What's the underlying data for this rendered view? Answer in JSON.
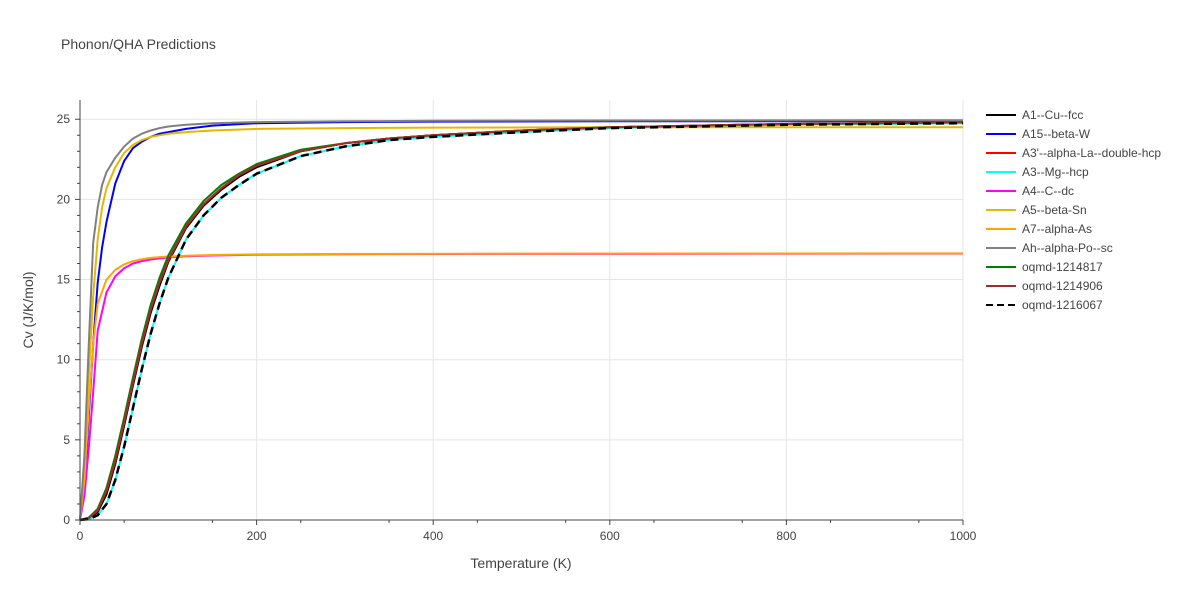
{
  "chart_data": {
    "type": "line",
    "title": "Phonon/QHA Predictions",
    "xlabel": "Temperature (K)",
    "ylabel": "Cv (J/K/mol)",
    "xlim": [
      0,
      1000
    ],
    "ylim": [
      0,
      26.2
    ],
    "xticks": [
      0,
      200,
      400,
      600,
      800,
      1000
    ],
    "yticks": [
      0,
      5,
      10,
      15,
      20,
      25
    ],
    "grid": true,
    "legend_position": "right",
    "series": [
      {
        "name": "A1--Cu--fcc",
        "color": "#000000",
        "dash": false,
        "x": [
          0,
          10,
          20,
          30,
          40,
          50,
          60,
          70,
          80,
          90,
          100,
          120,
          140,
          160,
          180,
          200,
          250,
          300,
          350,
          400,
          500,
          600,
          700,
          800,
          900,
          1000
        ],
        "y": [
          0,
          0.1,
          0.5,
          1.6,
          3.5,
          5.9,
          8.4,
          10.8,
          12.9,
          14.6,
          16.1,
          18.2,
          19.6,
          20.6,
          21.4,
          22.0,
          23.0,
          23.5,
          23.8,
          24.0,
          24.3,
          24.5,
          24.6,
          24.7,
          24.75,
          24.8
        ]
      },
      {
        "name": "A15--beta-W",
        "color": "#0000ff",
        "dash": false,
        "x": [
          0,
          5,
          10,
          15,
          20,
          25,
          30,
          40,
          50,
          60,
          70,
          80,
          90,
          100,
          120,
          150,
          200,
          300,
          400,
          600,
          800,
          1000
        ],
        "y": [
          0,
          2.0,
          6.5,
          11.0,
          14.8,
          17.0,
          18.6,
          21.0,
          22.4,
          23.2,
          23.6,
          23.9,
          24.1,
          24.2,
          24.4,
          24.6,
          24.75,
          24.82,
          24.85,
          24.87,
          24.88,
          24.89
        ]
      },
      {
        "name": "A3'--alpha-La--double-hcp",
        "color": "#ff0000",
        "dash": false,
        "x": [
          0,
          10,
          20,
          30,
          40,
          50,
          60,
          70,
          80,
          90,
          100,
          120,
          140,
          160,
          180,
          200,
          250,
          300,
          350,
          400,
          500,
          600,
          700,
          800,
          900,
          1000
        ],
        "y": [
          0,
          0.1,
          0.6,
          1.8,
          3.7,
          6.1,
          8.6,
          11.0,
          13.1,
          14.8,
          16.2,
          18.3,
          19.7,
          20.7,
          21.5,
          22.1,
          23.0,
          23.5,
          23.8,
          24.0,
          24.3,
          24.5,
          24.6,
          24.7,
          24.75,
          24.8
        ]
      },
      {
        "name": "A3--Mg--hcp",
        "color": "#00ffff",
        "dash": false,
        "x": [
          0,
          10,
          20,
          30,
          40,
          50,
          60,
          70,
          80,
          90,
          100,
          120,
          140,
          160,
          180,
          200,
          250,
          300,
          350,
          400,
          500,
          600,
          700,
          800,
          900,
          1000
        ],
        "y": [
          0,
          0.05,
          0.3,
          1.0,
          2.5,
          4.6,
          7.0,
          9.4,
          11.6,
          13.5,
          15.1,
          17.5,
          19.0,
          20.1,
          20.9,
          21.6,
          22.7,
          23.3,
          23.7,
          23.9,
          24.2,
          24.45,
          24.55,
          24.65,
          24.7,
          24.75
        ]
      },
      {
        "name": "A4--C--dc",
        "color": "#ff00ff",
        "dash": false,
        "x": [
          0,
          5,
          10,
          15,
          20,
          30,
          40,
          50,
          60,
          70,
          80,
          90,
          100,
          120,
          150,
          200,
          300,
          500,
          1000
        ],
        "y": [
          0,
          1.5,
          4.5,
          8.0,
          11.8,
          14.2,
          15.2,
          15.7,
          16.0,
          16.15,
          16.25,
          16.32,
          16.38,
          16.45,
          16.5,
          16.55,
          16.58,
          16.6,
          16.62
        ]
      },
      {
        "name": "A5--beta-Sn",
        "color": "#e6b800",
        "dash": false,
        "x": [
          0,
          5,
          10,
          15,
          20,
          25,
          30,
          40,
          50,
          60,
          70,
          80,
          90,
          100,
          120,
          150,
          200,
          300,
          400,
          600,
          800,
          1000
        ],
        "y": [
          0,
          3.5,
          9.0,
          14.0,
          17.5,
          19.5,
          20.7,
          22.0,
          22.9,
          23.4,
          23.7,
          23.9,
          24.0,
          24.1,
          24.2,
          24.3,
          24.4,
          24.45,
          24.48,
          24.5,
          24.5,
          24.5
        ]
      },
      {
        "name": "A7--alpha-As",
        "color": "#ffa500",
        "dash": false,
        "x": [
          0,
          5,
          10,
          15,
          20,
          30,
          40,
          50,
          60,
          70,
          80,
          90,
          100,
          120,
          150,
          200,
          300,
          500,
          1000
        ],
        "y": [
          0,
          2.5,
          7.0,
          11.0,
          13.5,
          15.0,
          15.6,
          15.95,
          16.15,
          16.27,
          16.35,
          16.4,
          16.44,
          16.49,
          16.53,
          16.57,
          16.6,
          16.62,
          16.63
        ]
      },
      {
        "name": "Ah--alpha-Po--sc",
        "color": "#808080",
        "dash": false,
        "x": [
          0,
          5,
          10,
          15,
          20,
          25,
          30,
          40,
          50,
          60,
          70,
          80,
          90,
          100,
          120,
          150,
          200,
          300,
          400,
          600,
          800,
          1000
        ],
        "y": [
          0,
          4.0,
          11.0,
          17.3,
          19.5,
          20.9,
          21.7,
          22.6,
          23.3,
          23.8,
          24.1,
          24.3,
          24.45,
          24.55,
          24.65,
          24.75,
          24.82,
          24.87,
          24.9,
          24.92,
          24.93,
          24.94
        ]
      },
      {
        "name": "oqmd-1214817",
        "color": "#008000",
        "dash": false,
        "x": [
          0,
          10,
          20,
          30,
          40,
          50,
          60,
          70,
          80,
          90,
          100,
          120,
          140,
          160,
          180,
          200,
          250,
          300,
          350,
          400,
          500,
          600,
          700,
          800,
          900,
          1000
        ],
        "y": [
          0,
          0.15,
          0.7,
          2.0,
          4.0,
          6.4,
          8.9,
          11.3,
          13.4,
          15.1,
          16.5,
          18.5,
          19.9,
          20.9,
          21.6,
          22.2,
          23.1,
          23.5,
          23.8,
          24.0,
          24.3,
          24.5,
          24.6,
          24.7,
          24.75,
          24.8
        ]
      },
      {
        "name": "oqmd-1214906",
        "color": "#a52a2a",
        "dash": false,
        "x": [
          0,
          10,
          20,
          30,
          40,
          50,
          60,
          70,
          80,
          90,
          100,
          120,
          140,
          160,
          180,
          200,
          250,
          300,
          350,
          400,
          500,
          600,
          700,
          800,
          900,
          1000
        ],
        "y": [
          0,
          0.12,
          0.6,
          1.8,
          3.7,
          6.1,
          8.6,
          11.0,
          13.1,
          14.8,
          16.2,
          18.3,
          19.7,
          20.7,
          21.5,
          22.1,
          23.0,
          23.5,
          23.8,
          24.0,
          24.3,
          24.5,
          24.6,
          24.7,
          24.75,
          24.8
        ]
      },
      {
        "name": "oqmd-1216067",
        "color": "#000000",
        "dash": true,
        "x": [
          0,
          10,
          20,
          30,
          40,
          50,
          60,
          70,
          80,
          90,
          100,
          120,
          140,
          160,
          180,
          200,
          250,
          300,
          350,
          400,
          500,
          600,
          700,
          800,
          900,
          1000
        ],
        "y": [
          0,
          0.05,
          0.3,
          1.0,
          2.5,
          4.6,
          7.0,
          9.4,
          11.6,
          13.5,
          15.1,
          17.5,
          19.0,
          20.1,
          20.9,
          21.6,
          22.7,
          23.3,
          23.7,
          23.9,
          24.2,
          24.45,
          24.55,
          24.65,
          24.7,
          24.75
        ]
      }
    ]
  }
}
